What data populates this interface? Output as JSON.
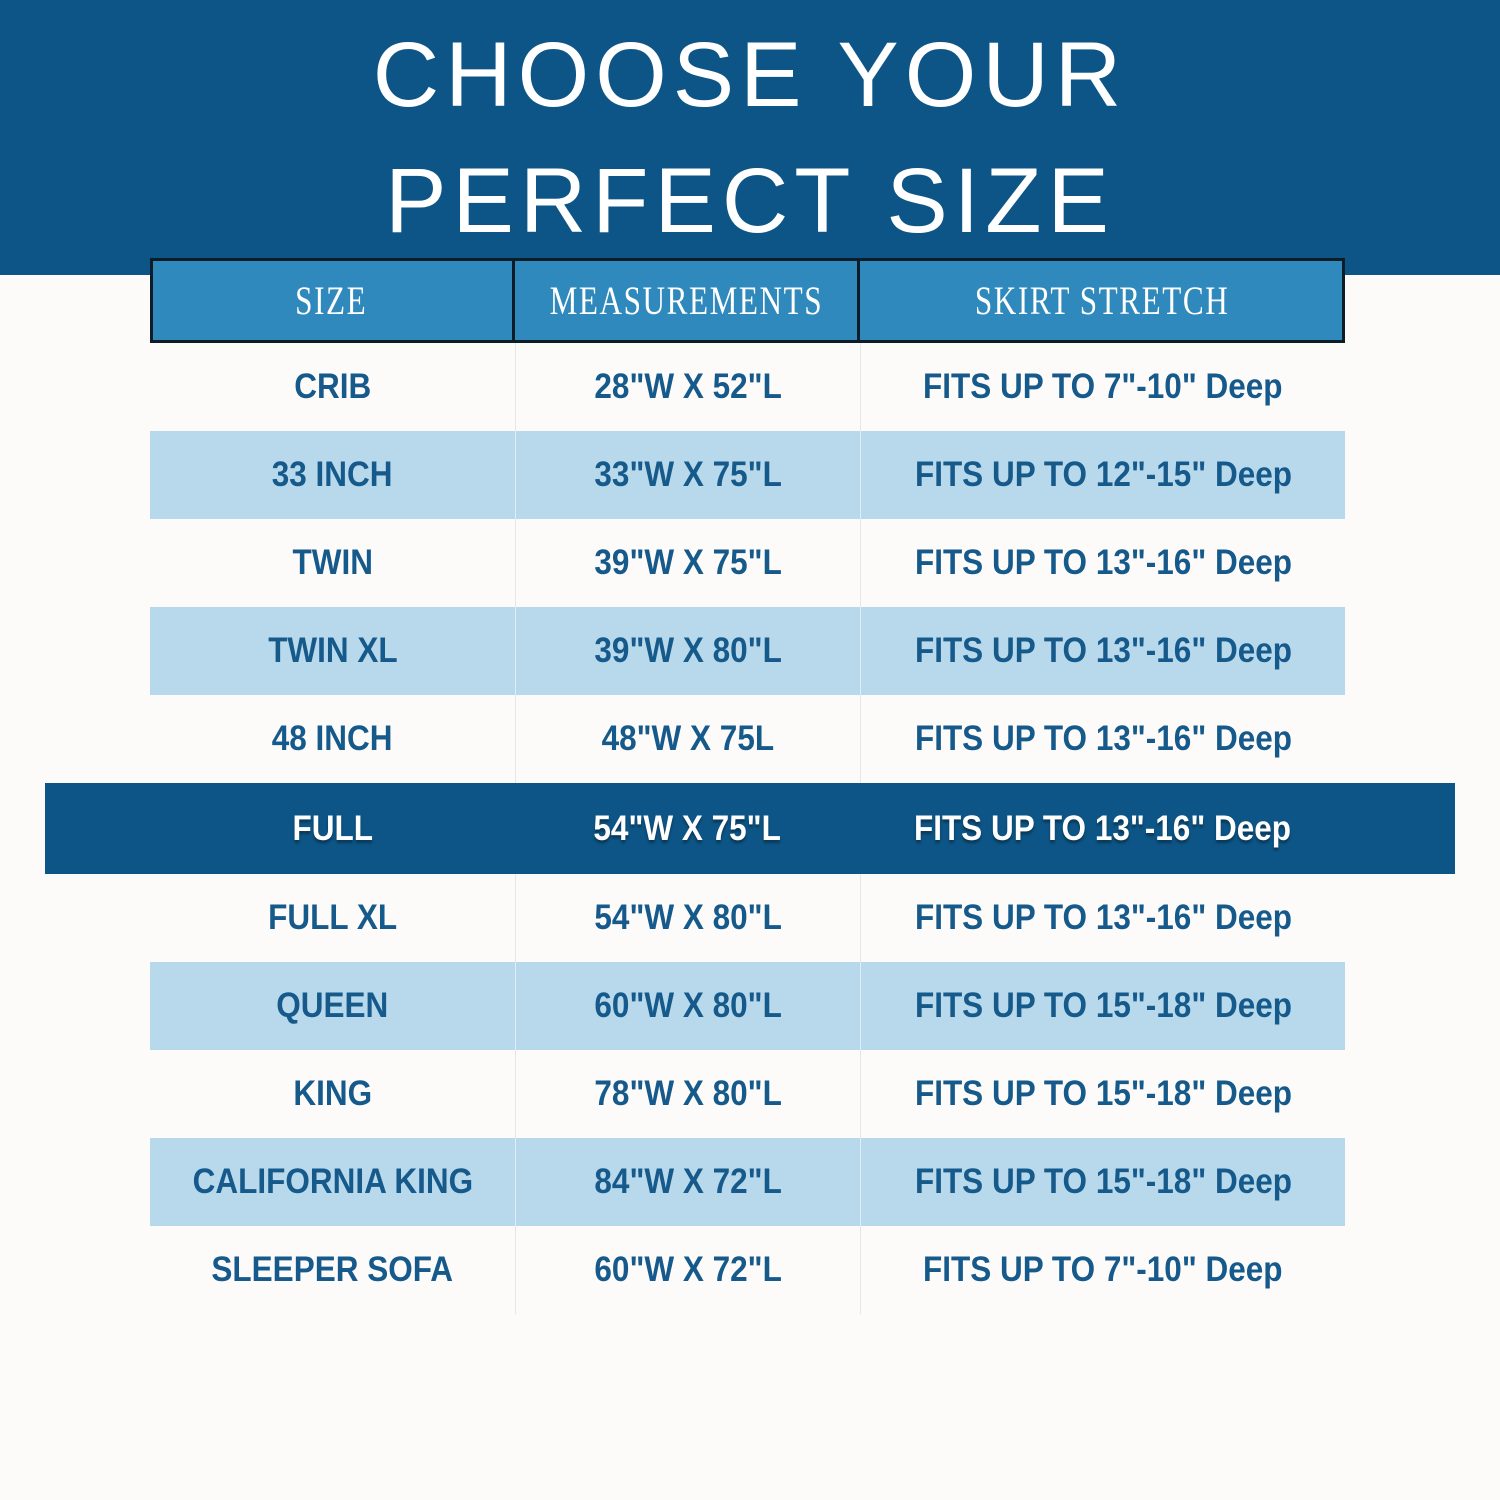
{
  "banner": {
    "title_line1": "CHOOSE YOUR",
    "title_line2": "PERFECT SIZE",
    "background_color": "#0d5586",
    "text_color": "#ffffff"
  },
  "table": {
    "header": {
      "size": "SIZE",
      "measurements": "MEASUREMENTS",
      "stretch": "SKIRT STRETCH",
      "background_color": "#2f89bc",
      "border_color": "#0e1c28",
      "text_color": "#ffffff"
    },
    "alt_row_color": "#b7d9eb",
    "highlight_row_color": "#0d5586",
    "body_text_color": "#16598b",
    "rows": [
      {
        "size": "CRIB",
        "measurements": "28\"W X 52\"L",
        "stretch": "FITS UP TO 7\"-10\" Deep",
        "highlight": false
      },
      {
        "size": "33 INCH",
        "measurements": "33\"W X 75\"L",
        "stretch": "FITS UP TO 12\"-15\" Deep",
        "highlight": false
      },
      {
        "size": "TWIN",
        "measurements": "39\"W X 75\"L",
        "stretch": "FITS UP TO 13\"-16\" Deep",
        "highlight": false
      },
      {
        "size": "TWIN XL",
        "measurements": "39\"W X 80\"L",
        "stretch": "FITS UP TO 13\"-16\" Deep",
        "highlight": false
      },
      {
        "size": "48 INCH",
        "measurements": "48\"W X 75L",
        "stretch": "FITS UP TO 13\"-16\" Deep",
        "highlight": false
      },
      {
        "size": "FULL",
        "measurements": "54\"W X 75\"L",
        "stretch": "FITS UP TO 13\"-16\" Deep",
        "highlight": true
      },
      {
        "size": "FULL XL",
        "measurements": "54\"W X 80\"L",
        "stretch": "FITS UP TO 13\"-16\" Deep",
        "highlight": false
      },
      {
        "size": "QUEEN",
        "measurements": "60\"W X 80\"L",
        "stretch": "FITS UP TO 15\"-18\" Deep",
        "highlight": false
      },
      {
        "size": "KING",
        "measurements": "78\"W X 80\"L",
        "stretch": "FITS UP TO 15\"-18\" Deep",
        "highlight": false
      },
      {
        "size": "CALIFORNIA KING",
        "measurements": "84\"W X 72\"L",
        "stretch": "FITS UP TO 15\"-18\" Deep",
        "highlight": false
      },
      {
        "size": "SLEEPER SOFA",
        "measurements": "60\"W X 72\"L",
        "stretch": "FITS UP TO 7\"-10\" Deep",
        "highlight": false
      }
    ]
  },
  "chart_data": {
    "type": "table",
    "title": "CHOOSE YOUR PERFECT SIZE",
    "columns": [
      "SIZE",
      "MEASUREMENTS",
      "SKIRT STRETCH"
    ],
    "rows": [
      [
        "CRIB",
        "28\"W X 52\"L",
        "FITS UP TO 7\"-10\" Deep"
      ],
      [
        "33 INCH",
        "33\"W X 75\"L",
        "FITS UP TO 12\"-15\" Deep"
      ],
      [
        "TWIN",
        "39\"W X 75\"L",
        "FITS UP TO 13\"-16\" Deep"
      ],
      [
        "TWIN XL",
        "39\"W X 80\"L",
        "FITS UP TO 13\"-16\" Deep"
      ],
      [
        "48 INCH",
        "48\"W X 75L",
        "FITS UP TO 13\"-16\" Deep"
      ],
      [
        "FULL",
        "54\"W X 75\"L",
        "FITS UP TO 13\"-16\" Deep"
      ],
      [
        "FULL XL",
        "54\"W X 80\"L",
        "FITS UP TO 13\"-16\" Deep"
      ],
      [
        "QUEEN",
        "60\"W X 80\"L",
        "FITS UP TO 15\"-18\" Deep"
      ],
      [
        "KING",
        "78\"W X 80\"L",
        "FITS UP TO 15\"-18\" Deep"
      ],
      [
        "CALIFORNIA KING",
        "84\"W X 72\"L",
        "FITS UP TO 15\"-18\" Deep"
      ],
      [
        "SLEEPER SOFA",
        "60\"W X 72\"L",
        "FITS UP TO 7\"-10\" Deep"
      ]
    ],
    "highlighted_row": "FULL",
    "layout": "alternating white and light-blue rows; highlighted row is full-bleed dark blue with white text"
  }
}
